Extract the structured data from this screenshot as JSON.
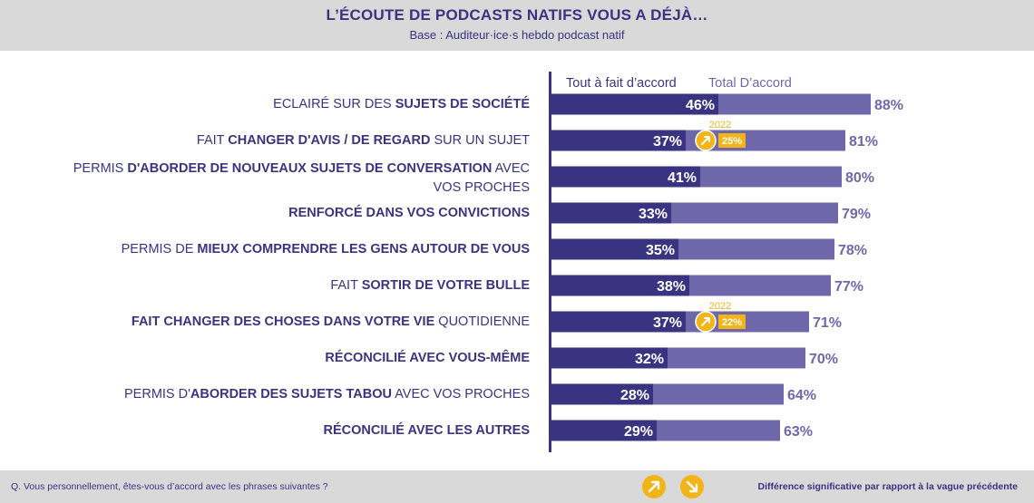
{
  "header": {
    "title": "L’ÉCOUTE DE PODCASTS NATIFS VOUS A DÉJÀ…",
    "subtitle": "Base : Auditeur·ice·s hebdo podcast natif"
  },
  "footer": {
    "question": "Q. Vous personnellement, êtes-vous d’accord avec les phrases suivantes ?",
    "note": "Différence significative par rapport à la vague précédente",
    "up_icon": "arrow-up-right-icon",
    "down_icon": "arrow-down-right-icon"
  },
  "colors": {
    "accent_dark": "#3a3381",
    "accent_light": "#6e67aa",
    "highlight": "#f2b417",
    "header_bg": "#d9d9d9"
  },
  "chart_data": {
    "type": "bar",
    "orientation": "horizontal",
    "title": "L’ÉCOUTE DE PODCASTS NATIFS VOUS A DÉJÀ…",
    "subtitle": "Base : Auditeur·ice·s hebdo podcast natif",
    "unit": "%",
    "xlim": [
      0,
      100
    ],
    "legend_position": "top",
    "series": [
      {
        "name": "Tout à fait d’accord",
        "color": "#3a3381",
        "values": [
          46,
          37,
          41,
          33,
          35,
          38,
          37,
          32,
          28,
          29
        ]
      },
      {
        "name": "Total D’accord",
        "color": "#6e67aa",
        "values": [
          88,
          81,
          80,
          79,
          78,
          77,
          71,
          70,
          64,
          63
        ]
      }
    ],
    "categories": [
      {
        "lines": [
          [
            {
              "t": "ECLAIRÉ SUR DES ",
              "b": false
            },
            {
              "t": "SUJETS DE SOCIÉTÉ",
              "b": true
            }
          ]
        ]
      },
      {
        "lines": [
          [
            {
              "t": "FAIT ",
              "b": false
            },
            {
              "t": "CHANGER D'AVIS / DE REGARD",
              "b": true
            },
            {
              "t": " SUR UN SUJET",
              "b": false
            }
          ]
        ]
      },
      {
        "lines": [
          [
            {
              "t": "PERMIS ",
              "b": false
            },
            {
              "t": "D'ABORDER DE NOUVEAUX SUJETS DE CONVERSATION",
              "b": true
            },
            {
              "t": " AVEC",
              "b": false
            }
          ],
          [
            {
              "t": "VOS PROCHES",
              "b": false
            }
          ]
        ]
      },
      {
        "lines": [
          [
            {
              "t": "RENFORCÉ DANS VOS CONVICTIONS",
              "b": true
            }
          ]
        ]
      },
      {
        "lines": [
          [
            {
              "t": "PERMIS DE ",
              "b": false
            },
            {
              "t": "MIEUX COMPRENDRE LES GENS AUTOUR DE VOUS",
              "b": true
            }
          ]
        ]
      },
      {
        "lines": [
          [
            {
              "t": "FAIT ",
              "b": false
            },
            {
              "t": "SORTIR DE VOTRE BULLE",
              "b": true
            }
          ]
        ]
      },
      {
        "lines": [
          [
            {
              "t": "FAIT CHANGER DES CHOSES DANS VOTRE VIE",
              "b": true
            },
            {
              "t": " QUOTIDIENNE",
              "b": false
            }
          ]
        ]
      },
      {
        "lines": [
          [
            {
              "t": "RÉCONCILIÉ AVEC VOUS-MÊME",
              "b": true
            }
          ]
        ]
      },
      {
        "lines": [
          [
            {
              "t": "PERMIS D'",
              "b": false
            },
            {
              "t": "ABORDER DES SUJETS TABOU",
              "b": true
            },
            {
              "t": " AVEC VOS PROCHES",
              "b": false
            }
          ]
        ]
      },
      {
        "lines": [
          [
            {
              "t": "RÉCONCILIÉ AVEC LES AUTRES",
              "b": true
            }
          ]
        ]
      }
    ],
    "annotations": [
      {
        "row": 1,
        "year": "2022",
        "previous_value": "25%",
        "direction": "up"
      },
      {
        "row": 6,
        "year": "2022",
        "previous_value": "22%",
        "direction": "up"
      }
    ]
  }
}
